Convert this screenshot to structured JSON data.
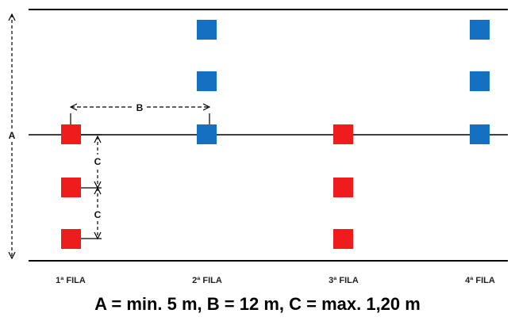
{
  "diagram": {
    "rows": [
      {
        "label": "1ª FILA"
      },
      {
        "label": "2ª FILA"
      },
      {
        "label": "3ª FILA"
      },
      {
        "label": "4ª FILA"
      }
    ],
    "dimensions": {
      "a": "A",
      "b": "B",
      "c": "C"
    },
    "colors": {
      "red_plant": "#ee1c1c",
      "blue_plant": "#1570c2",
      "line": "#000000"
    },
    "caption": "A = min. 5 m, B = 12 m, C = max. 1,20 m"
  }
}
